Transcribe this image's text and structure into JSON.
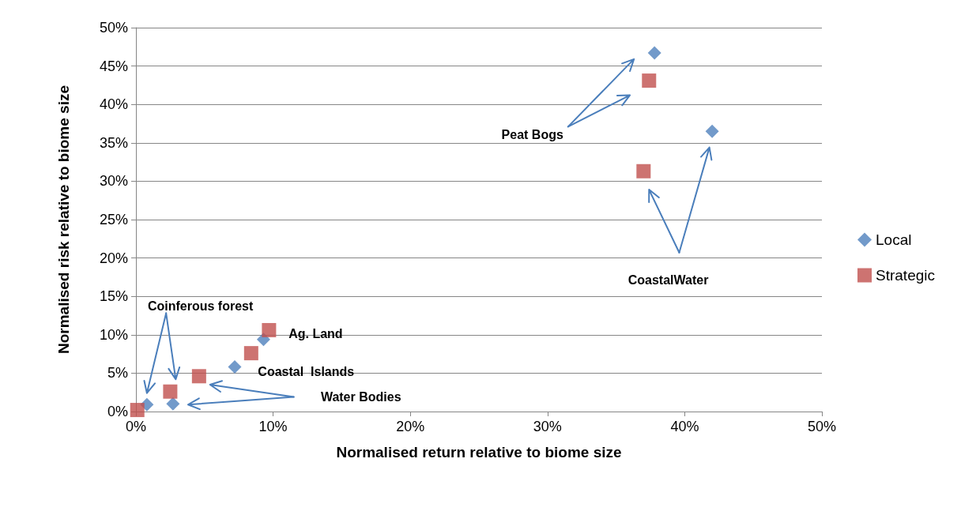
{
  "chart_data": {
    "type": "scatter",
    "xlabel": "Normalised return relative to biome size",
    "ylabel": "Normalised risk relative to biome size",
    "xlim": [
      0,
      50
    ],
    "ylim": [
      0,
      50
    ],
    "xticks": [
      {
        "value": 0,
        "label": "0%"
      },
      {
        "value": 10,
        "label": "10%"
      },
      {
        "value": 20,
        "label": "20%"
      },
      {
        "value": 30,
        "label": "30%"
      },
      {
        "value": 40,
        "label": "40%"
      },
      {
        "value": 50,
        "label": "50%"
      }
    ],
    "yticks": [
      {
        "value": 0,
        "label": "0%"
      },
      {
        "value": 5,
        "label": "5%"
      },
      {
        "value": 10,
        "label": "10%"
      },
      {
        "value": 15,
        "label": "15%"
      },
      {
        "value": 20,
        "label": "20%"
      },
      {
        "value": 25,
        "label": "25%"
      },
      {
        "value": 30,
        "label": "30%"
      },
      {
        "value": 35,
        "label": "35%"
      },
      {
        "value": 40,
        "label": "40%"
      },
      {
        "value": 45,
        "label": "45%"
      },
      {
        "value": 50,
        "label": "50%"
      }
    ],
    "grid": "y",
    "legend": "right",
    "series": [
      {
        "name": "Local",
        "color": "#4f81bd",
        "marker": "diamond",
        "x": [
          0.8,
          2.7,
          7.2,
          9.3,
          37.8,
          42.0
        ],
        "values": [
          0.9,
          1.0,
          5.8,
          9.4,
          46.7,
          36.5
        ]
      },
      {
        "name": "Strategic",
        "color": "#c0504d",
        "marker": "square",
        "x": [
          0.1,
          2.5,
          4.6,
          8.4,
          9.7,
          37.4,
          37.0
        ],
        "values": [
          0.2,
          2.6,
          4.6,
          7.6,
          10.6,
          43.1,
          31.3
        ]
      }
    ],
    "annotations": [
      "Peat Bogs",
      "CoastalWater",
      "Coinferous forest",
      "Ag. Land",
      "Coastal  Islands",
      "Water Bodies"
    ]
  }
}
